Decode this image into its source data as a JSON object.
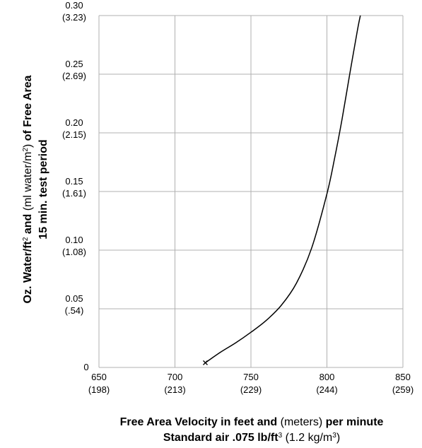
{
  "chart_data": {
    "type": "line",
    "x_ticks": [
      {
        "value": 650,
        "label": "650",
        "sub": "(198)"
      },
      {
        "value": 700,
        "label": "700",
        "sub": "(213)"
      },
      {
        "value": 750,
        "label": "750",
        "sub": "(229)"
      },
      {
        "value": 800,
        "label": "800",
        "sub": "(244)"
      },
      {
        "value": 850,
        "label": "850",
        "sub": "(259)"
      }
    ],
    "y_ticks": [
      {
        "value": 0,
        "label": "0",
        "sub": ""
      },
      {
        "value": 0.05,
        "label": "0.05",
        "sub": "(.54)"
      },
      {
        "value": 0.1,
        "label": "0.10",
        "sub": "(1.08)"
      },
      {
        "value": 0.15,
        "label": "0.15",
        "sub": "(1.61)"
      },
      {
        "value": 0.2,
        "label": "0.20",
        "sub": "(2.15)"
      },
      {
        "value": 0.25,
        "label": "0.25",
        "sub": "(2.69)"
      },
      {
        "value": 0.3,
        "label": "0.30",
        "sub": "(3.23)"
      }
    ],
    "xlim": [
      650,
      850
    ],
    "ylim": [
      0,
      0.3
    ],
    "grid": true,
    "series": [
      {
        "x": [
          720,
          730,
          740,
          750,
          760,
          770,
          780,
          790,
          800,
          805,
          810,
          815,
          820,
          822
        ],
        "y": [
          0.004,
          0.013,
          0.021,
          0.03,
          0.04,
          0.053,
          0.072,
          0.102,
          0.148,
          0.178,
          0.212,
          0.25,
          0.287,
          0.3
        ]
      }
    ],
    "start_marker": {
      "x": 720,
      "y": 0.004,
      "symbol": "x"
    },
    "ylabel": {
      "line1": [
        {
          "text": "Oz. Water/ft",
          "weight": "bold"
        },
        {
          "text": "2",
          "weight": "sup"
        },
        {
          "text": " and ",
          "weight": "bold"
        },
        {
          "text": "(ml water/m",
          "weight": "normal"
        },
        {
          "text": "2",
          "weight": "sup"
        },
        {
          "text": ")",
          "weight": "normal"
        },
        {
          "text": " of Free Area",
          "weight": "bold"
        }
      ],
      "line2": "15 min. test period"
    },
    "xlabel": {
      "line1": [
        {
          "text": "Free Area Velocity in feet and ",
          "weight": "bold"
        },
        {
          "text": "(meters)",
          "weight": "normal"
        },
        {
          "text": " per minute",
          "weight": "bold"
        }
      ],
      "line2": [
        {
          "text": "Standard air .075 lb/ft",
          "weight": "bold"
        },
        {
          "text": "3",
          "weight": "sup"
        },
        {
          "text": " (1.2 kg/m",
          "weight": "normal"
        },
        {
          "text": "3",
          "weight": "sup"
        },
        {
          "text": ")",
          "weight": "normal"
        }
      ]
    },
    "colors": {
      "line": "#000000",
      "grid": "#b0b0b0",
      "text": "#000000"
    }
  }
}
